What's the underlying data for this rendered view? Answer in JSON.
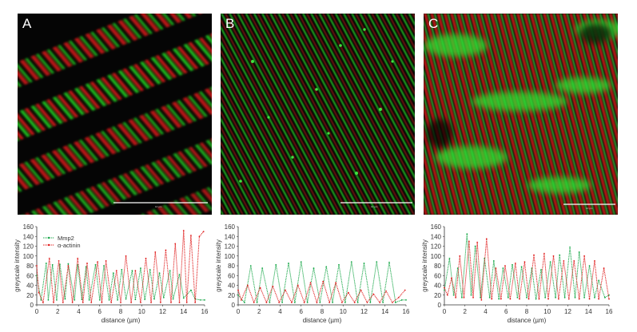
{
  "panels": [
    {
      "letter": "A",
      "scale_bar_label": "10 µm"
    },
    {
      "letter": "B",
      "scale_bar_label": "10 µm"
    },
    {
      "letter": "C",
      "scale_bar_label": "10 µm"
    }
  ],
  "colors": {
    "mmp2": "#1aa84a",
    "actinin": "#e02020",
    "image_green": "#20d020",
    "image_red": "#c81818"
  },
  "chart_data": [
    {
      "type": "line",
      "xlabel": "distance (µm)",
      "ylabel": "greyscale intensity",
      "xlim": [
        0,
        16
      ],
      "ylim": [
        0,
        160
      ],
      "xticks": [
        0,
        2,
        4,
        6,
        8,
        10,
        12,
        14,
        16
      ],
      "yticks": [
        0,
        20,
        40,
        60,
        80,
        100,
        120,
        140,
        160
      ],
      "legend": "top-left",
      "series": [
        {
          "name": "Mmp2",
          "color": "#1aa84a",
          "x": [
            0,
            0.4,
            0.9,
            1.1,
            1.5,
            1.9,
            2.2,
            2.7,
            3.0,
            3.6,
            3.9,
            4.3,
            4.7,
            5.0,
            5.6,
            6.0,
            6.4,
            6.9,
            7.3,
            7.7,
            8.1,
            8.5,
            9.1,
            9.4,
            9.9,
            10.3,
            10.8,
            11.2,
            11.7,
            12.1,
            12.7,
            13.0,
            13.6,
            14.0,
            14.7,
            15.1,
            15.6,
            16.0
          ],
          "y": [
            60,
            10,
            85,
            10,
            82,
            10,
            83,
            12,
            84,
            10,
            82,
            11,
            78,
            10,
            82,
            10,
            80,
            10,
            65,
            10,
            72,
            12,
            70,
            11,
            75,
            11,
            72,
            12,
            65,
            15,
            70,
            12,
            62,
            14,
            30,
            12,
            10,
            10
          ]
        },
        {
          "name": "α-actinin",
          "color": "#e02020",
          "x": [
            0,
            0.2,
            0.6,
            1.2,
            1.6,
            2.1,
            2.5,
            3.0,
            3.4,
            3.9,
            4.4,
            4.8,
            5.2,
            5.8,
            6.2,
            6.6,
            7.1,
            7.6,
            8.0,
            8.5,
            9.0,
            9.4,
            9.9,
            10.4,
            10.9,
            11.3,
            11.8,
            12.3,
            12.8,
            13.2,
            13.6,
            14.0,
            14.3,
            14.7,
            15.1,
            15.5,
            15.9
          ],
          "y": [
            80,
            25,
            5,
            95,
            5,
            90,
            5,
            80,
            5,
            95,
            5,
            85,
            5,
            88,
            5,
            90,
            5,
            70,
            5,
            100,
            5,
            70,
            5,
            95,
            5,
            108,
            5,
            112,
            5,
            125,
            5,
            152,
            5,
            142,
            5,
            140,
            150
          ]
        }
      ]
    },
    {
      "type": "line",
      "xlabel": "distance (µm)",
      "ylabel": "greyscale intensity",
      "xlim": [
        0,
        16
      ],
      "ylim": [
        0,
        160
      ],
      "xticks": [
        0,
        2,
        4,
        6,
        8,
        10,
        12,
        14,
        16
      ],
      "yticks": [
        0,
        20,
        40,
        60,
        80,
        100,
        120,
        140,
        160
      ],
      "series": [
        {
          "name": "Mmp2",
          "color": "#1aa84a",
          "x": [
            0,
            0.6,
            1.2,
            1.8,
            2.3,
            3.0,
            3.6,
            4.2,
            4.8,
            5.4,
            6.0,
            6.6,
            7.2,
            7.8,
            8.4,
            9.0,
            9.6,
            10.2,
            10.8,
            11.4,
            12.0,
            12.6,
            13.2,
            13.8,
            14.4,
            15.0,
            15.6,
            16.0
          ],
          "y": [
            20,
            5,
            80,
            5,
            75,
            5,
            82,
            5,
            85,
            5,
            88,
            5,
            75,
            5,
            78,
            5,
            82,
            5,
            88,
            5,
            85,
            5,
            88,
            5,
            87,
            5,
            10,
            10
          ]
        },
        {
          "name": "α-actinin",
          "color": "#e02020",
          "x": [
            0,
            0.3,
            0.9,
            1.5,
            2.1,
            2.7,
            3.3,
            3.9,
            4.5,
            5.1,
            5.7,
            6.3,
            6.9,
            7.5,
            8.1,
            8.7,
            9.3,
            9.9,
            10.5,
            11.1,
            11.7,
            12.3,
            12.9,
            13.5,
            14.1,
            14.7,
            15.3,
            15.9
          ],
          "y": [
            30,
            10,
            40,
            5,
            35,
            5,
            38,
            5,
            30,
            5,
            40,
            5,
            45,
            5,
            48,
            5,
            45,
            5,
            25,
            5,
            30,
            5,
            22,
            5,
            28,
            5,
            15,
            30
          ]
        }
      ]
    },
    {
      "type": "line",
      "xlabel": "distance (µm)",
      "ylabel": "greyscale intensity",
      "xlim": [
        0,
        16
      ],
      "ylim": [
        0,
        160
      ],
      "xticks": [
        0,
        2,
        4,
        6,
        8,
        10,
        12,
        14,
        16
      ],
      "yticks": [
        0,
        20,
        40,
        60,
        80,
        100,
        120,
        140,
        160
      ],
      "series": [
        {
          "name": "Mmp2",
          "color": "#1aa84a",
          "x": [
            0,
            0.5,
            0.9,
            1.3,
            1.7,
            2.2,
            2.6,
            3.0,
            3.5,
            3.9,
            4.4,
            4.8,
            5.3,
            5.7,
            6.2,
            6.6,
            7.1,
            7.5,
            8.0,
            8.5,
            8.9,
            9.4,
            9.8,
            10.3,
            10.8,
            11.2,
            11.7,
            12.2,
            12.7,
            13.1,
            13.6,
            14.1,
            14.6,
            15.0,
            15.6,
            16.0
          ],
          "y": [
            30,
            95,
            20,
            75,
            15,
            145,
            20,
            120,
            15,
            95,
            15,
            90,
            12,
            75,
            15,
            82,
            15,
            78,
            15,
            75,
            12,
            72,
            15,
            88,
            15,
            102,
            15,
            118,
            15,
            108,
            15,
            80,
            15,
            50,
            15,
            20
          ]
        },
        {
          "name": "α-actinin",
          "color": "#e02020",
          "x": [
            0,
            0.3,
            0.7,
            1.1,
            1.5,
            1.9,
            2.4,
            2.8,
            3.2,
            3.6,
            4.1,
            4.6,
            5.0,
            5.5,
            5.9,
            6.4,
            6.9,
            7.3,
            7.8,
            8.2,
            8.7,
            9.2,
            9.7,
            10.1,
            10.6,
            11.1,
            11.6,
            12.1,
            12.6,
            13.1,
            13.6,
            14.1,
            14.6,
            15.0,
            15.5,
            16.0
          ],
          "y": [
            35,
            20,
            55,
            15,
            100,
            15,
            130,
            15,
            128,
            10,
            135,
            12,
            75,
            12,
            80,
            12,
            85,
            12,
            88,
            12,
            102,
            12,
            105,
            12,
            100,
            12,
            90,
            12,
            90,
            12,
            100,
            12,
            90,
            12,
            75,
            12
          ]
        }
      ]
    }
  ]
}
